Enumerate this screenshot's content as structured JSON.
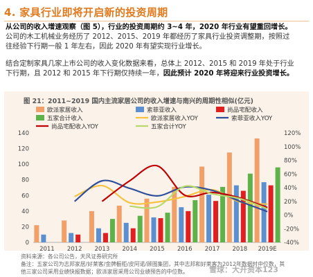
{
  "section": {
    "title": "4. 家具行业即将开启新的投资周期"
  },
  "paragraph1": {
    "lead": "从公司的收入增速观察（图 5），行业的投资周期约 3~4 年，2020 年行业有望重回增长。",
    "line2": "公司的木工机械业务经历了 2012、2015、2019 年都经历了家具行业投资调整期，按照过",
    "line3": "往经验下行期一般 1 年左右，因此 2020 年有望实现行业增长。"
  },
  "paragraph2": {
    "line1": "结合定制家具几家上市公司的收入变化数据来看，总体上 2012、2015 和 2019 年处于行业",
    "line2_a": "下行期，且 2012 和 2015 年下行期仅持续一年，",
    "line2_b": "因此预计 2020 年将迎来行业投资增长。"
  },
  "figure": {
    "title": "图 21：2011~2019 国内主流家居公司的收入增速与南兴的周期性相似(亿元)"
  },
  "notes": {
    "source": "资料来源：各公司公告，天风证券研究所",
    "note1": "备注：五家公司为志邦家居/好莱客/金牌橱柜/皮阿诺/顾图集团，其中志邦和好莱客为2012年数据时中位数，其",
    "note2": "他三家公司采用业绩快报数据；欧派家居采用公司业绩预告的中位数。"
  },
  "watermark": {
    "text": "雪球：大开资本123"
  },
  "colors": {
    "title_orange": "#e07a1f",
    "oppein_bar": "#f0a068",
    "sofia_bar": "#5b8fd0",
    "nanxing_bar": "#e02020",
    "five_bar": "#5fb24a",
    "oppein_yoy": "#f5c242",
    "sofia_yoy": "#2f4f9a",
    "nanxing_yoy": "#c00000",
    "five_yoy": "#b8d86a",
    "chart_bg": "#fbf3ea"
  },
  "chart_data": {
    "type": "bar",
    "categories": [
      "2011",
      "2012",
      "2013",
      "2014",
      "2015",
      "2016",
      "2017",
      "2018",
      "2019E"
    ],
    "ylim": [
      0,
      140
    ],
    "yticks": [
      0,
      20,
      40,
      60,
      80,
      100,
      120,
      140
    ],
    "y2lim": [
      -0.4,
      1.2
    ],
    "y2ticks": [
      "-40%",
      "-20%",
      "0%",
      "20%",
      "40%",
      "60%",
      "80%",
      "100%",
      "120%"
    ],
    "legend": {
      "欧派家居收入": "bar",
      "索菲亚收入": "bar",
      "尚品宅配收入": "bar",
      "五家合计收入": "bar",
      "欧派家居收入YOY": "line",
      "索菲亚收入YOY": "line",
      "尚品宅配收入YOY": "line",
      "五家合计YOY": "line"
    },
    "series": [
      {
        "name": "欧派家居收入",
        "kind": "bar",
        "axis": "left",
        "color": "#f0a068",
        "values": [
          22,
          28,
          40,
          47,
          56,
          71,
          97,
          115,
          133
        ]
      },
      {
        "name": "索菲亚收入",
        "kind": "bar",
        "axis": "left",
        "color": "#5b8fd0",
        "values": [
          10,
          12,
          18,
          25,
          32,
          45,
          61,
          73,
          77
        ]
      },
      {
        "name": "尚品宅配收入",
        "kind": "bar",
        "axis": "left",
        "color": "#e02020",
        "values": [
          null,
          10,
          12,
          18,
          31,
          40,
          53,
          66,
          73
        ]
      },
      {
        "name": "五家合计收入",
        "kind": "bar",
        "axis": "left",
        "color": "#5fb24a",
        "values": [
          null,
          null,
          30,
          34,
          38,
          54,
          71,
          88,
          96
        ]
      },
      {
        "name": "欧派家居收入YOY",
        "kind": "line",
        "axis": "right",
        "color": "#f5c242",
        "values": [
          null,
          0.27,
          0.43,
          0.18,
          0.19,
          0.27,
          0.37,
          0.19,
          0.16
        ]
      },
      {
        "name": "索菲亚收入YOY",
        "kind": "line",
        "axis": "right",
        "color": "#2f4f9a",
        "values": [
          null,
          0.2,
          0.5,
          0.39,
          0.28,
          0.41,
          0.36,
          0.2,
          0.05
        ]
      },
      {
        "name": "尚品宅配收入YOY",
        "kind": "line",
        "axis": "right",
        "color": "#c00000",
        "values": [
          null,
          null,
          0.2,
          0.5,
          0.72,
          0.29,
          0.33,
          0.25,
          0.11
        ]
      },
      {
        "name": "五家合计YOY",
        "kind": "line",
        "axis": "right",
        "color": "#b8d86a",
        "values": [
          null,
          null,
          null,
          0.13,
          0.12,
          0.42,
          0.31,
          0.24,
          0.09
        ]
      }
    ]
  }
}
